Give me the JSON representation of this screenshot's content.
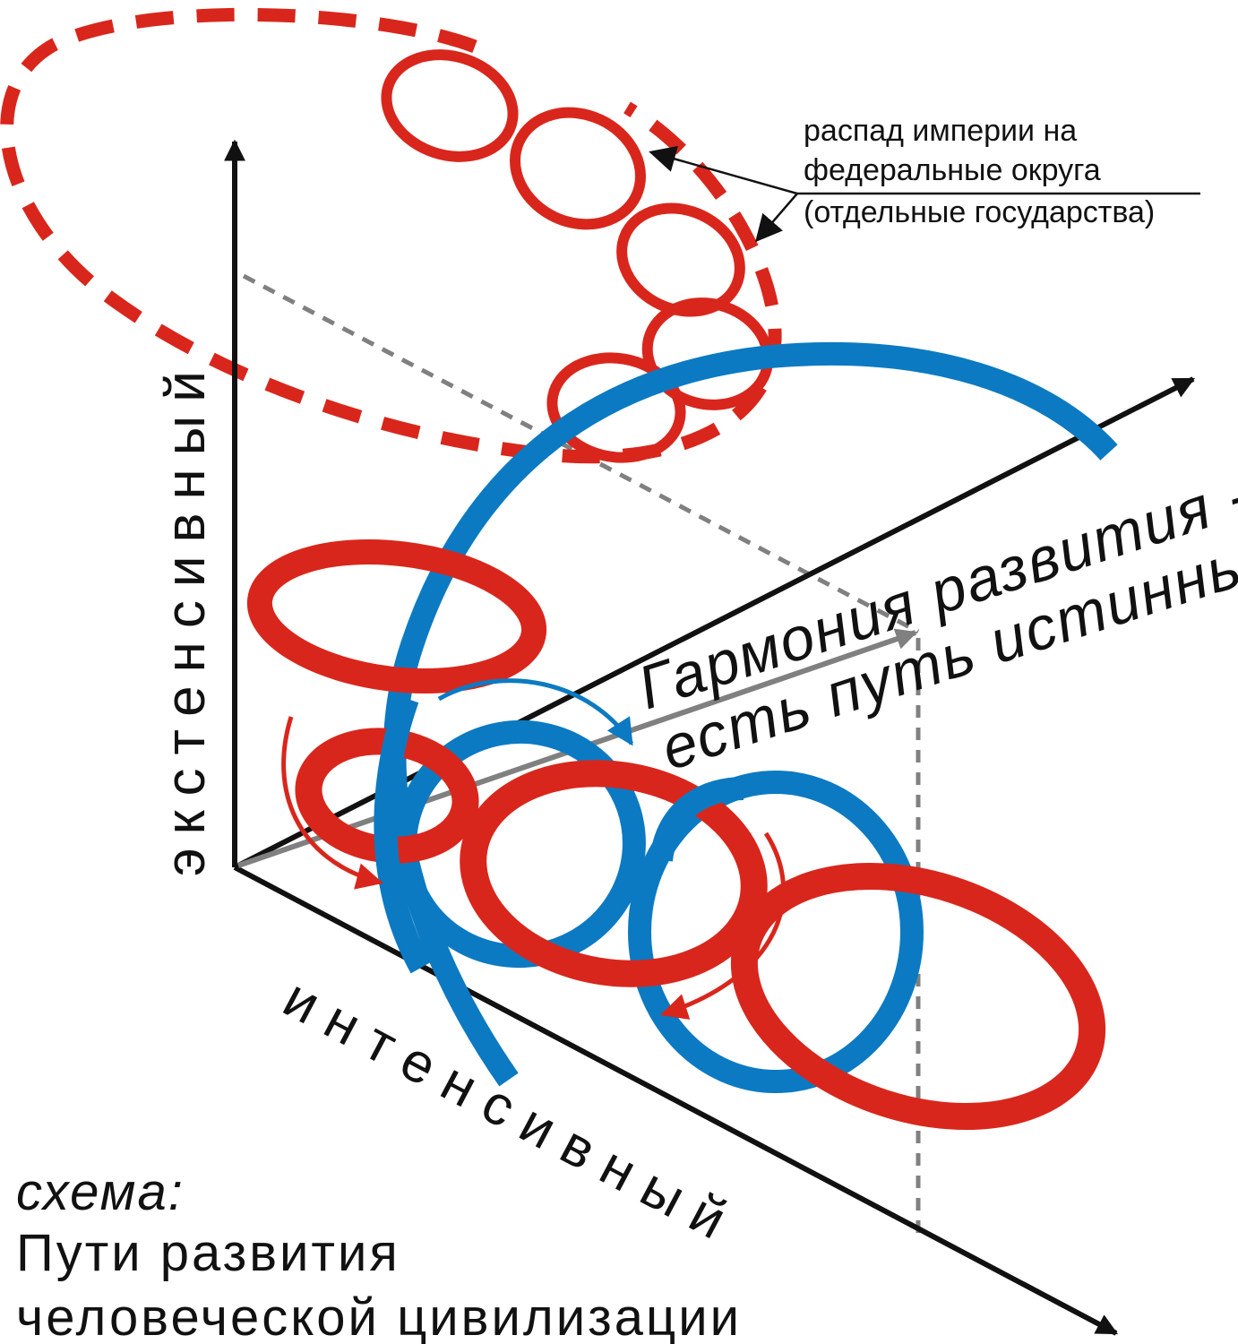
{
  "diagram": {
    "axis_vertical_label": "экстенсивный",
    "axis_diagonal_label": "интенсивный",
    "harmony_line1": "Гармония развития -",
    "harmony_line2": "есть путь истинный!",
    "breakup_note": [
      "распад империи на",
      "федеральные округа",
      "(отдельные государства)"
    ],
    "caption_label": "схема:",
    "caption_title_line1": "Пути развития",
    "caption_title_line2": "человеческой цивилизации"
  },
  "colors": {
    "red": "#d9261c",
    "blue": "#0b7ac2",
    "axis": "#111111",
    "guide": "#808080"
  },
  "icons": [
    "arrow-head-icon",
    "curved-arrow-icon"
  ]
}
